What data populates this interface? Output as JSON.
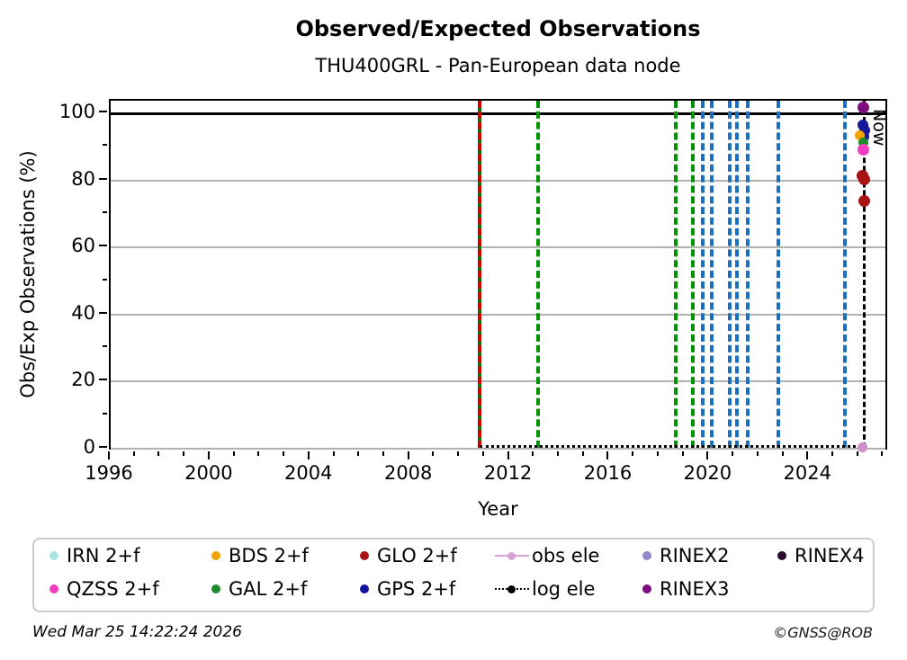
{
  "chart_data": {
    "type": "scatter",
    "title": "Observed/Expected Observations",
    "subtitle": "THU400GRL - Pan-European data node",
    "xlabel": "Year",
    "ylabel": "Obs/Exp Observations (%)",
    "xlim": [
      1996,
      2027.2
    ],
    "ylim": [
      -0.8,
      103.8
    ],
    "xticks": [
      1996,
      2000,
      2004,
      2008,
      2012,
      2016,
      2020,
      2024
    ],
    "x_minor_step": 1,
    "yticks": [
      0,
      20,
      40,
      60,
      80,
      100
    ],
    "y_minor_step": 10,
    "grid": "horizontal-light-gray",
    "reference_line_y": 100,
    "event_lines": [
      {
        "x": 2010.79,
        "color": "#007d00",
        "style": "solid",
        "overlay_color": "#d40000",
        "overlay_style": "dashed"
      },
      {
        "x": 2013.15,
        "color": "#009200",
        "style": "dashed"
      },
      {
        "x": 2018.66,
        "color": "#009200",
        "style": "dashed"
      },
      {
        "x": 2019.35,
        "color": "#009200",
        "style": "dashed"
      },
      {
        "x": 2019.72,
        "color": "#1b6fc0",
        "style": "dashed"
      },
      {
        "x": 2020.08,
        "color": "#1b6fc0",
        "style": "dashed"
      },
      {
        "x": 2020.8,
        "color": "#1b6fc0",
        "style": "dashed"
      },
      {
        "x": 2021.1,
        "color": "#1b6fc0",
        "style": "dashed"
      },
      {
        "x": 2021.52,
        "color": "#1b6fc0",
        "style": "dashed"
      },
      {
        "x": 2022.75,
        "color": "#1b6fc0",
        "style": "dashed"
      },
      {
        "x": 2025.45,
        "color": "#1b6fc0",
        "style": "dashed"
      }
    ],
    "now_line": {
      "x": 2026.23,
      "color": "#000000",
      "style": "dashed",
      "label": "Now"
    },
    "dotted_baseline": {
      "name": "log ele",
      "y": 0.7,
      "x_start": 2010.79,
      "x_end": 2026.1,
      "color": "#000000"
    },
    "series": [
      {
        "name": "RINEX3",
        "color": "#7d0e7d",
        "size": 13,
        "points": [
          {
            "x": 2026.18,
            "y": 101.8
          }
        ]
      },
      {
        "name": "GPS 2+f",
        "color": "#16169d",
        "size": 12,
        "points": [
          {
            "x": 2026.17,
            "y": 96.5
          },
          {
            "x": 2026.22,
            "y": 95.0
          },
          {
            "x": 2026.18,
            "y": 93.2
          }
        ]
      },
      {
        "name": "BDS 2+f",
        "color": "#f5a300",
        "size": 11,
        "points": [
          {
            "x": 2026.04,
            "y": 93.5
          }
        ]
      },
      {
        "name": "GAL 2+f",
        "color": "#1e8b2d",
        "size": 11,
        "points": [
          {
            "x": 2026.18,
            "y": 91.2
          }
        ]
      },
      {
        "name": "QZSS 2+f",
        "color": "#f23cc0",
        "size": 13,
        "points": [
          {
            "x": 2026.16,
            "y": 89.3
          }
        ]
      },
      {
        "name": "GLO 2+f",
        "color": "#a81414",
        "size": 13,
        "points": [
          {
            "x": 2026.14,
            "y": 81.5
          },
          {
            "x": 2026.2,
            "y": 80.2
          },
          {
            "x": 2026.2,
            "y": 74.0
          }
        ]
      },
      {
        "name": "obs ele",
        "color": "#cf8fcf",
        "size": 11,
        "points": [
          {
            "x": 2026.14,
            "y": 0.3
          }
        ]
      }
    ]
  },
  "legend": {
    "rows": [
      [
        {
          "label": "IRN 2+f",
          "marker": "dot",
          "color": "#ade5e5"
        },
        {
          "label": "BDS 2+f",
          "marker": "dot",
          "color": "#f5a300"
        },
        {
          "label": "GLO 2+f",
          "marker": "dot",
          "color": "#a81414"
        },
        {
          "label": "obs ele",
          "marker": "line-dot",
          "color": "#d9a3d9"
        },
        {
          "label": "RINEX2",
          "marker": "dot",
          "color": "#8e8ace"
        },
        {
          "label": "RINEX4",
          "marker": "dot",
          "color": "#2b0b2e"
        }
      ],
      [
        {
          "label": "QZSS 2+f",
          "marker": "dot",
          "color": "#f23cc0"
        },
        {
          "label": "GAL 2+f",
          "marker": "dot",
          "color": "#1e8b2d"
        },
        {
          "label": "GPS 2+f",
          "marker": "dot",
          "color": "#16169d"
        },
        {
          "label": "log ele",
          "marker": "dotted-line-dot",
          "color": "#000000"
        },
        {
          "label": "RINEX3",
          "marker": "dot",
          "color": "#7d0e7d"
        }
      ]
    ]
  },
  "footer": {
    "timestamp": "Wed Mar 25 14:22:24 2026",
    "copyright": "©GNSS@ROB"
  }
}
